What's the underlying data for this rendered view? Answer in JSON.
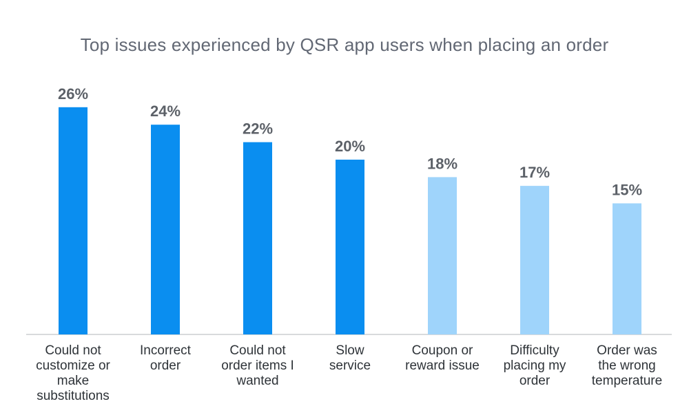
{
  "chart_data": {
    "type": "bar",
    "title": "Top issues experienced by QSR app users when placing an order",
    "categories": [
      "Could not customize or make substitutions",
      "Incorrect order",
      "Could not order items I wanted",
      "Slow service",
      "Coupon or reward issue",
      "Difficulty placing my order",
      "Order was the wrong temperature"
    ],
    "category_lines": [
      [
        "Could not",
        "customize or",
        "make",
        "substitutions"
      ],
      [
        "Incorrect",
        "order"
      ],
      [
        "Could not",
        "order items I",
        "wanted"
      ],
      [
        "Slow",
        "service"
      ],
      [
        "Coupon or",
        "reward issue"
      ],
      [
        "Difficulty",
        "placing my",
        "order"
      ],
      [
        "Order was",
        "the wrong",
        "temperature"
      ]
    ],
    "values": [
      26,
      24,
      22,
      20,
      18,
      17,
      15
    ],
    "value_labels": [
      "26%",
      "24%",
      "22%",
      "20%",
      "18%",
      "17%",
      "15%"
    ],
    "unit": "%",
    "ylim": [
      0,
      30
    ],
    "grid": false,
    "legend": "none",
    "colors": {
      "highlight": "#0a8ef0",
      "muted": "#9fd4fb",
      "axis": "#b0b4b8",
      "value_text": "#5c6168",
      "category_text": "#2e3338",
      "title_text": "#626874"
    },
    "highlighted_indices": [
      0,
      1,
      2,
      3
    ]
  }
}
